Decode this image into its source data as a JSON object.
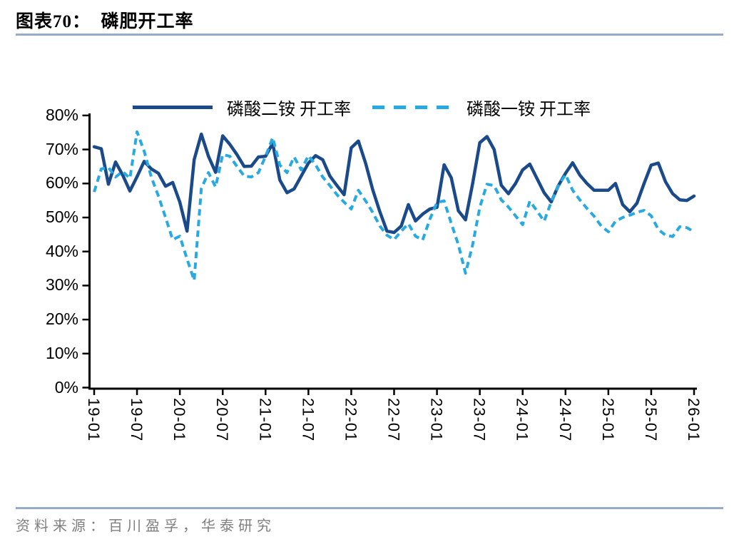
{
  "header": {
    "title": "图表70：  磷肥开工率"
  },
  "footer": {
    "source": "资料来源：百川盈孚，华泰研究"
  },
  "colors": {
    "series_dap": "#1B4A8B",
    "series_map": "#29A9E2",
    "rule_blue": "#96ACC8",
    "axis": "#000000",
    "source_text": "#7F7F7F",
    "background": "#FFFFFF"
  },
  "chart_data": {
    "type": "line",
    "title": "磷肥开工率",
    "x_interval": "monthly, 2019-01 to 2026-01",
    "x_tick_labels": [
      "19-01",
      "19-07",
      "20-01",
      "20-07",
      "21-01",
      "21-07",
      "22-01",
      "22-07",
      "23-01",
      "23-07",
      "24-01",
      "24-07",
      "25-01",
      "25-07",
      "26-01"
    ],
    "y_tick_labels": [
      "80%",
      "70%",
      "60%",
      "50%",
      "40%",
      "30%",
      "20%",
      "10%",
      "0%"
    ],
    "ylim": [
      0,
      80
    ],
    "grid": false,
    "legend_position": "top",
    "series": [
      {
        "name": "磷酸二铵 开工率",
        "style": "solid",
        "color": "#1B4A8B",
        "values": [
          70.8,
          70.2,
          59.8,
          66.3,
          62.5,
          57.8,
          62.0,
          66.5,
          64.3,
          63.0,
          59.2,
          60.3,
          54.5,
          46.0,
          67.0,
          74.5,
          68.0,
          63.3,
          74.0,
          71.5,
          68.5,
          65.0,
          65.1,
          67.8,
          68.0,
          71.8,
          61.0,
          57.3,
          58.4,
          62.2,
          66.0,
          68.2,
          67.0,
          62.2,
          59.4,
          56.7,
          70.5,
          72.5,
          66.0,
          58.2,
          51.7,
          46.0,
          45.6,
          47.5,
          53.8,
          49.0,
          51.0,
          52.5,
          53.0,
          65.5,
          61.7,
          52.0,
          49.3,
          60.0,
          72.0,
          73.8,
          70.0,
          59.5,
          57.0,
          60.0,
          64.0,
          65.7,
          61.5,
          57.3,
          54.6,
          59.4,
          63.0,
          66.1,
          62.5,
          60.0,
          58.0,
          58.0,
          58.0,
          60.0,
          53.8,
          51.7,
          54.2,
          60.0,
          65.4,
          66.0,
          60.5,
          57.0,
          55.2,
          55.0,
          56.3
        ]
      },
      {
        "name": "磷酸一铵 开工率",
        "style": "dashed",
        "color": "#29A9E2",
        "values": [
          57.5,
          64.3,
          64.7,
          61.9,
          63.5,
          61.5,
          75.2,
          69.5,
          61.9,
          56.3,
          50.0,
          43.5,
          44.5,
          37.8,
          31.5,
          58.5,
          63.2,
          59.0,
          68.5,
          68.0,
          65.0,
          62.2,
          61.9,
          63.2,
          68.0,
          73.5,
          65.4,
          63.2,
          67.8,
          64.0,
          68.2,
          65.5,
          61.9,
          59.4,
          56.7,
          54.5,
          52.5,
          58.0,
          54.9,
          51.5,
          47.5,
          44.8,
          43.5,
          46.0,
          48.2,
          44.5,
          43.4,
          49.5,
          54.4,
          54.9,
          48.3,
          42.0,
          33.6,
          42.0,
          53.0,
          59.8,
          59.4,
          55.2,
          53.1,
          50.5,
          47.9,
          54.8,
          52.0,
          48.9,
          54.6,
          59.4,
          62.6,
          58.0,
          55.2,
          52.7,
          50.4,
          47.5,
          45.8,
          48.9,
          50.0,
          50.7,
          51.5,
          52.1,
          50.5,
          46.5,
          44.8,
          44.4,
          47.3,
          47.0,
          45.8
        ]
      }
    ]
  }
}
